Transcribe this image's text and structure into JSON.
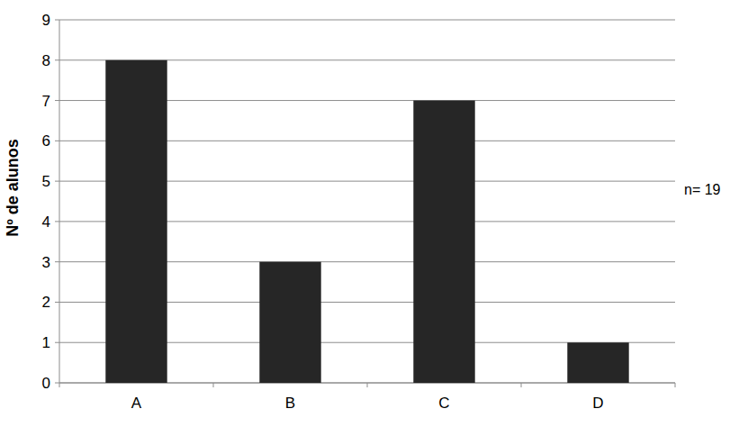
{
  "chart_data": {
    "type": "bar",
    "y_label": "Nº de alunos",
    "annotation": "n= 19",
    "categories": [
      "A",
      "B",
      "C",
      "D"
    ],
    "values": [
      8,
      3,
      7,
      1
    ],
    "color": "#262626",
    "ylim": [
      0,
      9
    ],
    "yticks": [
      0,
      1,
      2,
      3,
      4,
      5,
      6,
      7,
      8,
      9
    ],
    "grid": true
  }
}
